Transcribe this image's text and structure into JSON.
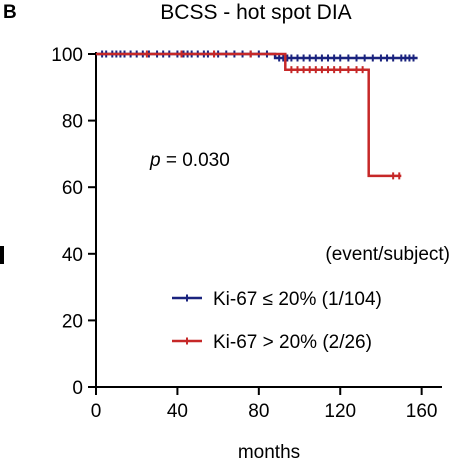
{
  "panel_label": "B",
  "chart_data": {
    "type": "line",
    "title": "BCSS - hot spot DIA",
    "xlabel": "months",
    "ylabel": "",
    "xlim": [
      0,
      170
    ],
    "ylim": [
      0,
      100
    ],
    "x_ticks": [
      0,
      40,
      80,
      120,
      160
    ],
    "y_ticks": [
      0,
      20,
      40,
      60,
      80,
      100
    ],
    "x_tick_labels": [
      "0",
      "40",
      "80",
      "120",
      "160"
    ],
    "y_tick_labels": [
      "0",
      "20",
      "40",
      "60",
      "80",
      "100"
    ],
    "annotation": "p = 0.030",
    "legend_header": "(event/subject)",
    "legend_placement": "lower-right",
    "series": [
      {
        "name": "Ki-67 ≤ 20% (1/104)",
        "color": "#1a237e",
        "steps": [
          [
            0,
            100
          ],
          [
            88,
            100
          ],
          [
            88,
            98.8
          ],
          [
            158,
            98.8
          ]
        ],
        "censor_x": [
          3,
          5,
          8,
          10,
          12,
          14,
          17,
          20,
          23,
          26,
          30,
          33,
          36,
          40,
          43,
          45,
          47,
          50,
          53,
          55,
          58,
          60,
          64,
          68,
          72,
          76,
          80,
          84,
          90,
          92,
          94,
          96,
          99,
          102,
          105,
          108,
          111,
          114,
          117,
          120,
          124,
          128,
          132,
          136,
          140,
          143,
          146,
          150,
          152,
          154,
          156
        ]
      },
      {
        "name": "Ki-67 > 20% (2/26)",
        "color": "#c62828",
        "steps": [
          [
            0,
            100
          ],
          [
            93,
            100
          ],
          [
            93,
            95.3
          ],
          [
            134,
            95.3
          ],
          [
            134,
            63.4
          ],
          [
            150,
            63.4
          ]
        ],
        "censor_x": [
          25,
          42,
          58,
          76,
          96,
          99,
          102,
          105,
          108,
          111,
          114,
          117,
          120,
          124,
          128,
          131,
          146,
          149
        ]
      }
    ]
  }
}
